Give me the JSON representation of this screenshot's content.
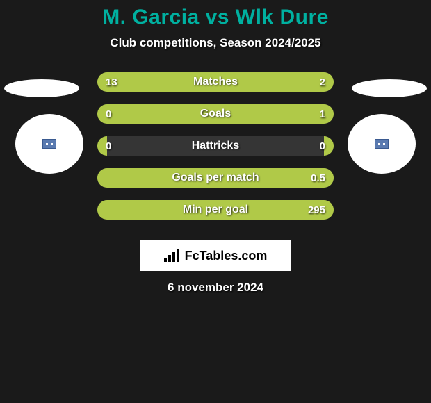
{
  "title": "M. Garcia vs Wlk Dure",
  "subtitle": "Club competitions, Season 2024/2025",
  "colors": {
    "background": "#1a1a1a",
    "title": "#00b0a0",
    "bar_fill": "#b0c948",
    "bar_bg": "#353535",
    "text": "#ffffff"
  },
  "bars": [
    {
      "label": "Matches",
      "left_val": "13",
      "right_val": "2",
      "left_pct": 78,
      "right_pct": 22
    },
    {
      "label": "Goals",
      "left_val": "0",
      "right_val": "1",
      "left_pct": 4,
      "right_pct": 96
    },
    {
      "label": "Hattricks",
      "left_val": "0",
      "right_val": "0",
      "left_pct": 4,
      "right_pct": 4
    },
    {
      "label": "Goals per match",
      "left_val": "",
      "right_val": "0.5",
      "left_pct": 0,
      "right_pct": 100
    },
    {
      "label": "Min per goal",
      "left_val": "",
      "right_val": "295",
      "left_pct": 0,
      "right_pct": 100
    }
  ],
  "brand": "FcTables.com",
  "date": "6 november 2024"
}
